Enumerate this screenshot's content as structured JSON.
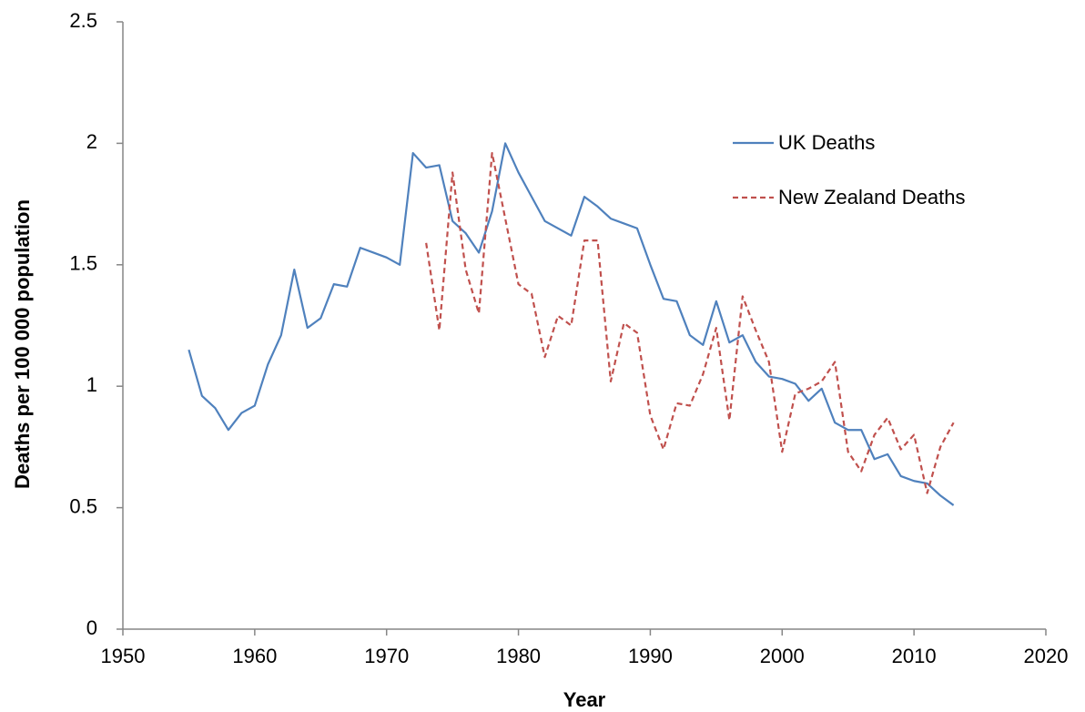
{
  "chart_data": {
    "type": "line",
    "x_label": "Year",
    "y_label": "Deaths per 100 000 population",
    "x": [
      1955,
      1956,
      1957,
      1958,
      1959,
      1960,
      1961,
      1962,
      1963,
      1964,
      1965,
      1966,
      1967,
      1968,
      1969,
      1970,
      1971,
      1972,
      1973,
      1974,
      1975,
      1976,
      1977,
      1978,
      1979,
      1980,
      1981,
      1982,
      1983,
      1984,
      1985,
      1986,
      1987,
      1988,
      1989,
      1990,
      1991,
      1992,
      1993,
      1994,
      1995,
      1996,
      1997,
      1998,
      1999,
      2000,
      2001,
      2002,
      2003,
      2004,
      2005,
      2006,
      2007,
      2008,
      2009,
      2010,
      2011,
      2012,
      2013
    ],
    "series": [
      {
        "name": "UK Deaths",
        "color": "#4f81bd",
        "style": "solid",
        "values": [
          1.15,
          0.96,
          0.91,
          0.82,
          0.89,
          0.92,
          1.09,
          1.21,
          1.48,
          1.24,
          1.28,
          1.42,
          1.41,
          1.57,
          1.55,
          1.53,
          1.5,
          1.96,
          1.9,
          1.91,
          1.68,
          1.63,
          1.55,
          1.72,
          2.0,
          1.88,
          1.78,
          1.68,
          1.65,
          1.62,
          1.78,
          1.74,
          1.69,
          1.67,
          1.65,
          1.5,
          1.36,
          1.35,
          1.21,
          1.17,
          1.35,
          1.18,
          1.21,
          1.1,
          1.04,
          1.03,
          1.01,
          0.94,
          0.99,
          0.85,
          0.82,
          0.82,
          0.7,
          0.72,
          0.63,
          0.61,
          0.6,
          0.55,
          0.51
        ]
      },
      {
        "name": "New Zealand Deaths",
        "color": "#c0504d",
        "style": "dashed",
        "values": [
          null,
          null,
          null,
          null,
          null,
          null,
          null,
          null,
          null,
          null,
          null,
          null,
          null,
          null,
          null,
          null,
          null,
          null,
          1.59,
          1.23,
          1.88,
          1.48,
          1.3,
          1.96,
          1.69,
          1.42,
          1.38,
          1.12,
          1.29,
          1.25,
          1.6,
          1.6,
          1.02,
          1.26,
          1.22,
          0.88,
          0.74,
          0.93,
          0.92,
          1.05,
          1.24,
          0.86,
          1.37,
          1.23,
          1.1,
          0.73,
          0.97,
          0.99,
          1.02,
          1.1,
          0.73,
          0.65,
          0.8,
          0.87,
          0.74,
          0.8,
          0.56,
          0.75,
          0.85
        ]
      }
    ],
    "xlim": [
      1950,
      2020
    ],
    "xticks": [
      1950,
      1960,
      1970,
      1980,
      1990,
      2000,
      2010,
      2020
    ],
    "ylim": [
      0,
      2.5
    ],
    "yticks": [
      0,
      0.5,
      1,
      1.5,
      2,
      2.5
    ],
    "grid": false,
    "legend": "upper right"
  }
}
